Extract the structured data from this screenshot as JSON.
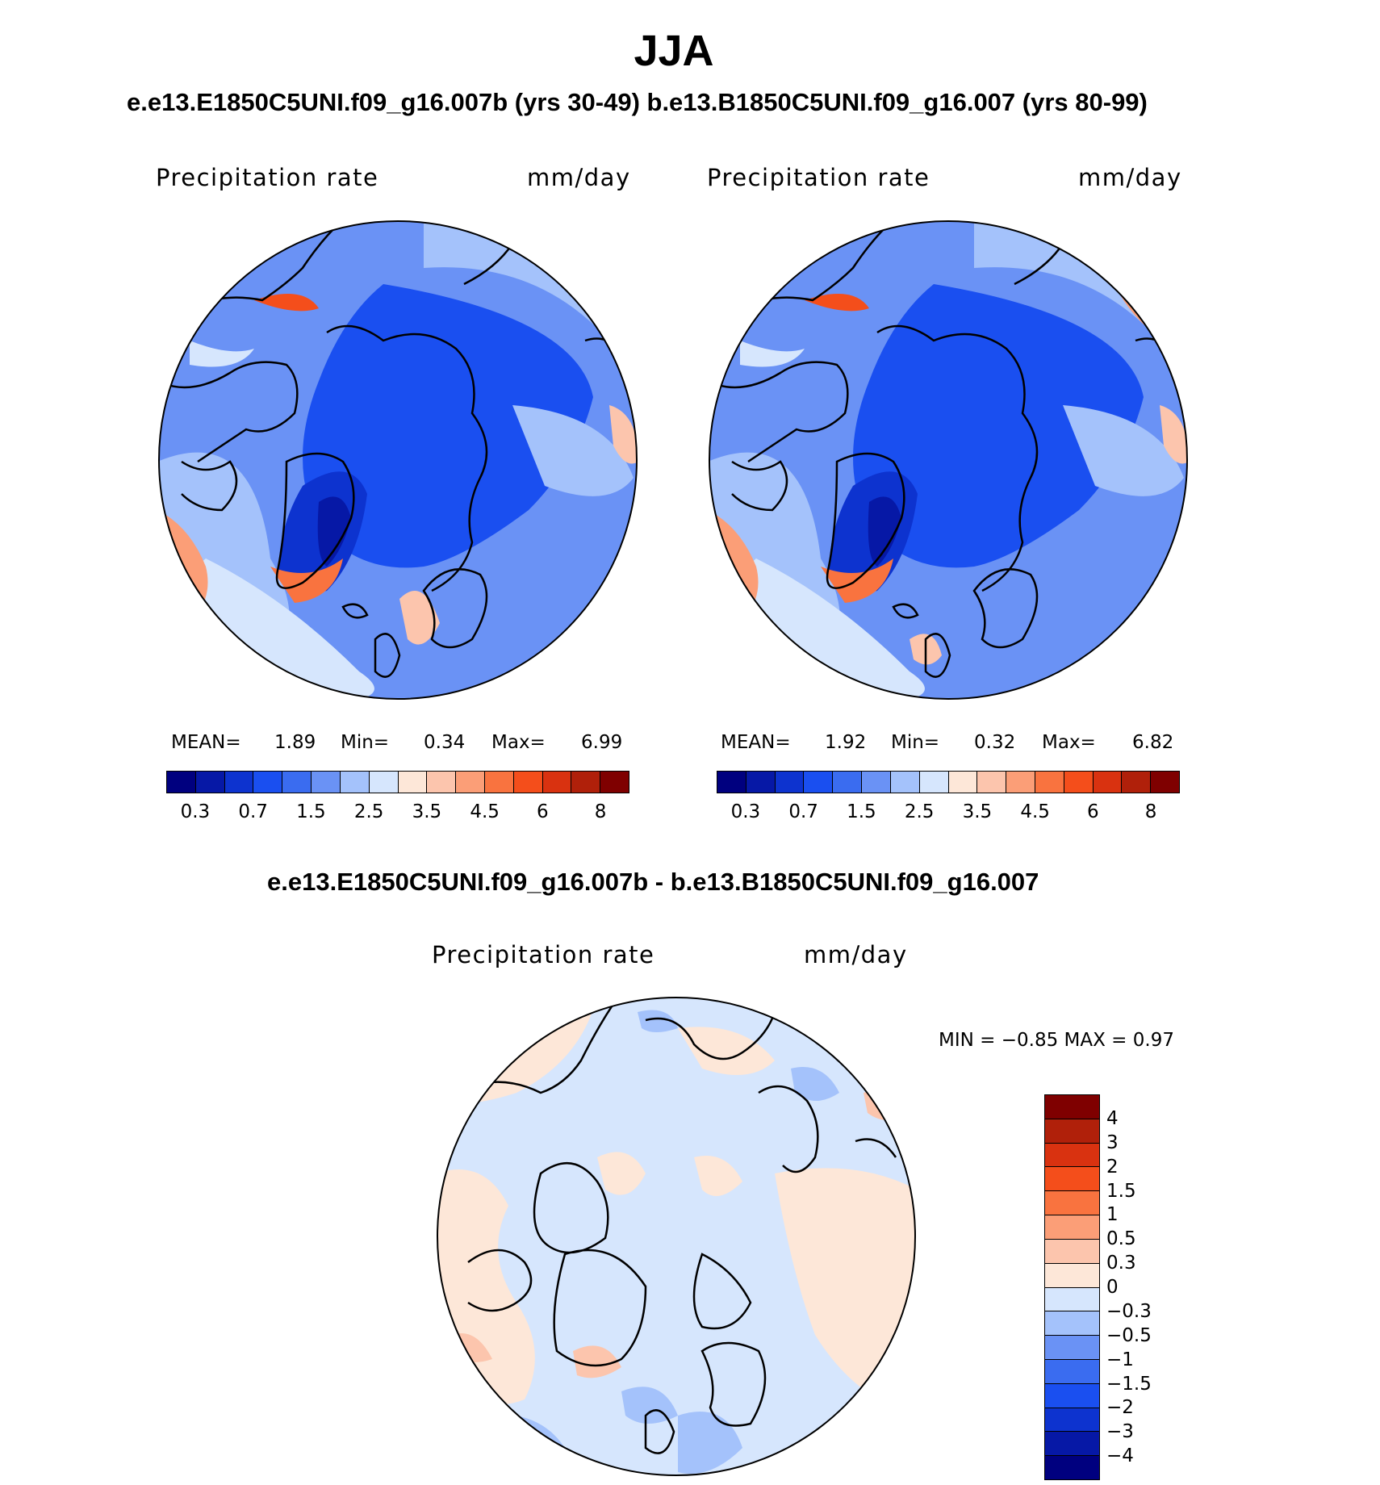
{
  "title": "JJA",
  "subtitle": "e.e13.E1850C5UNI.f09_g16.007b (yrs 30-49)  b.e13.B1850C5UNI.f09_g16.007 (yrs 80-99)",
  "panels": [
    {
      "variable": "Precipitation  rate",
      "units": "mm/day",
      "mean_label": "MEAN=",
      "mean": "1.89",
      "min_label": "Min=",
      "min": "0.34",
      "max_label": "Max=",
      "max": "6.99"
    },
    {
      "variable": "Precipitation  rate",
      "units": "mm/day",
      "mean_label": "MEAN=",
      "mean": "1.92",
      "min_label": "Min=",
      "min": "0.32",
      "max_label": "Max=",
      "max": "6.82"
    }
  ],
  "abs_colorbar": {
    "tick_labels": [
      "0.3",
      "0.7",
      "1.5",
      "2.5",
      "3.5",
      "4.5",
      "6",
      "8"
    ],
    "colors": [
      "#00007f",
      "#0618a6",
      "#0d33cf",
      "#1a4ff0",
      "#3a6cf0",
      "#6a92f5",
      "#a4c2fb",
      "#d6e6fd",
      "#fde7d8",
      "#fcc5ad",
      "#fb9e77",
      "#f9733f",
      "#f44e1b",
      "#d93210",
      "#b0200a",
      "#7f0000"
    ]
  },
  "diff": {
    "title": "e.e13.E1850C5UNI.f09_g16.007b - b.e13.B1850C5UNI.f09_g16.007",
    "variable": "Precipitation  rate",
    "units": "mm/day",
    "minmax_text": "MIN =   −0.85 MAX =    0.97",
    "colorbar": {
      "tick_labels": [
        "4",
        "3",
        "2",
        "1.5",
        "1",
        "0.5",
        "0.3",
        "0",
        "−0.3",
        "−0.5",
        "−1",
        "−1.5",
        "−2",
        "−3",
        "−4"
      ],
      "colors": [
        "#7f0000",
        "#b0200a",
        "#d93210",
        "#f44e1b",
        "#f9733f",
        "#fb9e77",
        "#fcc5ad",
        "#fde7d8",
        "#d6e6fd",
        "#a4c2fb",
        "#6a92f5",
        "#3a6cf0",
        "#1a4ff0",
        "#0d33cf",
        "#0618a6",
        "#00007f"
      ]
    }
  }
}
